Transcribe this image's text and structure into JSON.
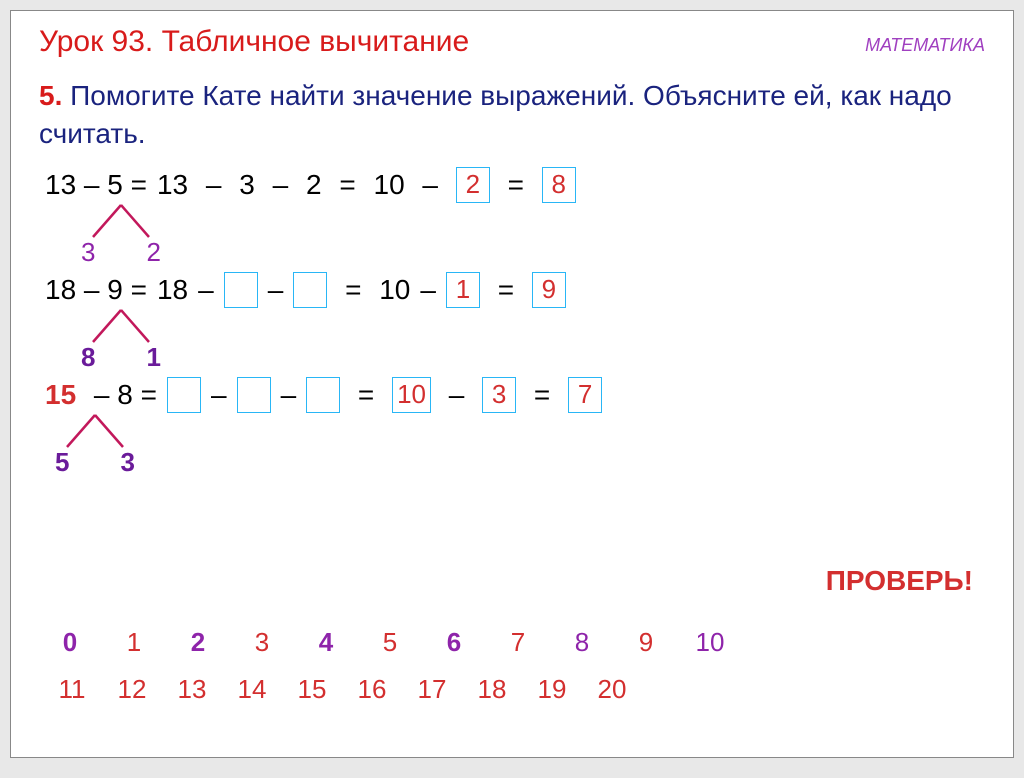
{
  "header": {
    "title": "Урок 93. Табличное вычитание",
    "subject": "МАТЕМАТИКА"
  },
  "instruction": {
    "num": "5.",
    "text": " Помогите Кате найти значение выражений. Объясните ей, как надо считать."
  },
  "lines": [
    {
      "lhs": "13 – 5 =",
      "mid_a": "13",
      "mid_b": "3",
      "mid_c": "2",
      "mid_d": "10",
      "box1": "2",
      "box2": "8",
      "split": {
        "left": "3",
        "right": "2",
        "x": 42,
        "y": 40,
        "color_left": "#8e24aa",
        "color_right": "#8e24aa",
        "bold": false
      }
    },
    {
      "lhs": "18 – 9 =",
      "mid_a": "18",
      "mid_b": "",
      "mid_c": "",
      "mid_d": "10",
      "box1": "1",
      "box2": "9",
      "split": {
        "left": "8",
        "right": "1",
        "x": 42,
        "y": 40,
        "color_left": "#6a1b9a",
        "color_right": "#6a1b9a",
        "bold": true
      }
    },
    {
      "lhs_red": "15",
      "lhs_rest": " – 8 =",
      "mid_a": "",
      "mid_b": "",
      "mid_c": "",
      "mid_d_box": "10",
      "box1": "3",
      "box2": "7",
      "split": {
        "left": "5",
        "right": "3",
        "x": 18,
        "y": 40,
        "color_left": "#6a1b9a",
        "color_right": "#6a1b9a",
        "bold": true
      }
    }
  ],
  "check": "ПРОВЕРЬ!",
  "numberline": {
    "row1": [
      {
        "v": "0",
        "c": "#8e24aa",
        "b": true
      },
      {
        "v": "1",
        "c": "#d32f2f"
      },
      {
        "v": "2",
        "c": "#8e24aa",
        "b": true
      },
      {
        "v": "3",
        "c": "#d32f2f"
      },
      {
        "v": "4",
        "c": "#8e24aa",
        "b": true
      },
      {
        "v": "5",
        "c": "#d32f2f"
      },
      {
        "v": "6",
        "c": "#8e24aa",
        "b": true
      },
      {
        "v": "7",
        "c": "#d32f2f"
      },
      {
        "v": "8",
        "c": "#8e24aa"
      },
      {
        "v": "9",
        "c": "#d32f2f"
      },
      {
        "v": "10",
        "c": "#8e24aa"
      }
    ],
    "row2": [
      {
        "v": "11",
        "c": "#d32f2f"
      },
      {
        "v": "12",
        "c": "#d32f2f"
      },
      {
        "v": "13",
        "c": "#d32f2f"
      },
      {
        "v": "14",
        "c": "#d32f2f"
      },
      {
        "v": "15",
        "c": "#d32f2f"
      },
      {
        "v": "16",
        "c": "#d32f2f"
      },
      {
        "v": "17",
        "c": "#d32f2f"
      },
      {
        "v": "18",
        "c": "#d32f2f"
      },
      {
        "v": "19",
        "c": "#d32f2f"
      },
      {
        "v": "20",
        "c": "#d32f2f"
      }
    ]
  },
  "colors": {
    "title": "#d81b1b",
    "subject": "#a040c0",
    "instr": "#1a237e",
    "box_border": "#29b6f6",
    "split_line": "#c2185b"
  }
}
